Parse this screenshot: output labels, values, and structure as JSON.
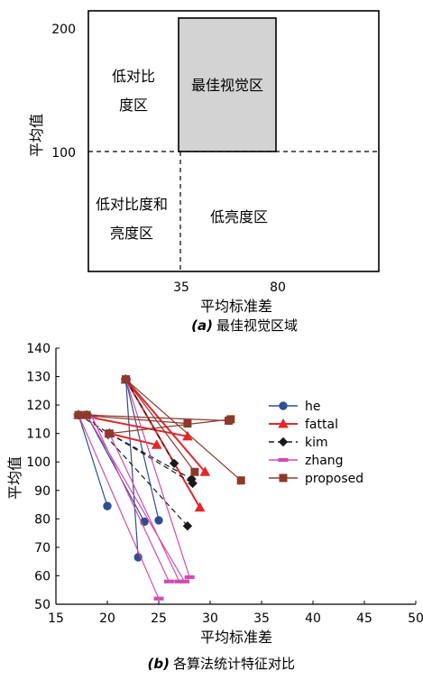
{
  "chart_data": [
    {
      "type": "diagram",
      "xlabel": "平均标准差",
      "ylabel": "平均值",
      "x_ticks": [
        "35",
        "80"
      ],
      "y_ticks": [
        "200",
        "100"
      ],
      "regions": [
        {
          "name": "最佳视觉区",
          "shaded": true
        },
        {
          "name": "低对比度区",
          "lines": [
            "低对比",
            "度区"
          ]
        },
        {
          "name": "低对比度和亮度区",
          "lines": [
            "低对比度和",
            "亮度区"
          ]
        },
        {
          "name": "低亮度区",
          "lines": [
            "低亮度区"
          ]
        }
      ],
      "caption": {
        "label": "(a)",
        "text": "最佳视觉区域"
      }
    },
    {
      "type": "line",
      "xlabel": "平均标准差",
      "ylabel": "平均值",
      "xlim": [
        15,
        50
      ],
      "ylim": [
        50,
        140
      ],
      "x_ticks": [
        15,
        20,
        25,
        30,
        35,
        40,
        45,
        50
      ],
      "y_ticks": [
        50,
        60,
        70,
        80,
        90,
        100,
        110,
        120,
        130,
        140
      ],
      "legend_position": "right",
      "caption": {
        "label": "(b)",
        "text": "各算法统计特征对比"
      },
      "series": [
        {
          "name": "he",
          "color": "#2f4f8f",
          "marker": "circle",
          "dash": "solid",
          "segments": [
            [
              [
                17.2,
                116.5
              ],
              [
                20.0,
                84.5
              ]
            ],
            [
              [
                18.0,
                116.5
              ],
              [
                23.6,
                79.0
              ]
            ],
            [
              [
                21.8,
                129.0
              ],
              [
                25.0,
                79.5
              ]
            ],
            [
              [
                21.8,
                129.0
              ],
              [
                23.0,
                66.5
              ]
            ]
          ]
        },
        {
          "name": "fattal",
          "color": "#e8242b",
          "marker": "triangle",
          "dash": "solid",
          "segments": [
            [
              [
                17.2,
                116.5
              ],
              [
                27.8,
                109.0
              ]
            ],
            [
              [
                21.8,
                129.0
              ],
              [
                29.5,
                96.5
              ]
            ],
            [
              [
                21.8,
                129.0
              ],
              [
                29.0,
                84.0
              ]
            ],
            [
              [
                20.2,
                110.0
              ],
              [
                24.8,
                106.0
              ]
            ]
          ]
        },
        {
          "name": "kim",
          "color": "#1a1a1a",
          "marker": "diamond",
          "dash": "dashed",
          "segments": [
            [
              [
                17.2,
                116.5
              ],
              [
                28.3,
                92.5
              ]
            ],
            [
              [
                18.0,
                116.5
              ],
              [
                27.8,
                77.5
              ]
            ],
            [
              [
                21.8,
                129.0
              ],
              [
                26.5,
                99.5
              ]
            ],
            [
              [
                20.2,
                110.0
              ],
              [
                28.2,
                94.0
              ]
            ]
          ]
        },
        {
          "name": "zhang",
          "color": "#d04db0",
          "marker": "dash",
          "dash": "solid",
          "segments": [
            [
              [
                17.2,
                116.5
              ],
              [
                25.0,
                52.0
              ]
            ],
            [
              [
                18.0,
                116.5
              ],
              [
                27.5,
                58.0
              ]
            ],
            [
              [
                21.8,
                129.0
              ],
              [
                28.0,
                59.5
              ]
            ],
            [
              [
                20.2,
                110.0
              ],
              [
                27.0,
                58.0
              ]
            ],
            [
              [
                18.5,
                116.0
              ],
              [
                26.0,
                58.0
              ]
            ]
          ]
        },
        {
          "name": "proposed",
          "color": "#8b3a2c",
          "marker": "square",
          "dash": "solid",
          "segments": [
            [
              [
                17.2,
                116.5
              ],
              [
                27.8,
                113.5
              ]
            ],
            [
              [
                18.0,
                116.5
              ],
              [
                31.8,
                114.5
              ]
            ],
            [
              [
                21.8,
                129.0
              ],
              [
                33.0,
                93.5
              ]
            ],
            [
              [
                21.8,
                129.0
              ],
              [
                28.5,
                96.5
              ]
            ],
            [
              [
                20.2,
                110.0
              ],
              [
                32.0,
                115.0
              ]
            ]
          ]
        }
      ]
    }
  ]
}
